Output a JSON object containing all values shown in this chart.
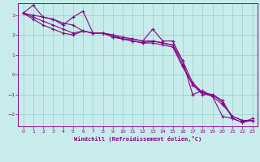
{
  "xlabel": "Windchill (Refroidissement éolien,°C)",
  "bg_color": "#c8ecec",
  "grid_color": "#a0d0d0",
  "line_color": "#880088",
  "xlim": [
    -0.5,
    23.5
  ],
  "ylim": [
    -2.6,
    3.6
  ],
  "yticks": [
    -2,
    -1,
    0,
    1,
    2,
    3
  ],
  "xticks": [
    0,
    1,
    2,
    3,
    4,
    5,
    6,
    7,
    8,
    9,
    10,
    11,
    12,
    13,
    14,
    15,
    16,
    17,
    18,
    19,
    20,
    21,
    22,
    23
  ],
  "series": [
    [
      3.1,
      3.5,
      2.9,
      2.8,
      2.5,
      2.9,
      3.2,
      2.1,
      2.1,
      2.0,
      1.8,
      1.8,
      1.7,
      2.3,
      1.7,
      1.7,
      0.7,
      -1.0,
      -0.8,
      -1.1,
      -2.1,
      -2.2,
      -2.4,
      -2.2
    ],
    [
      3.1,
      2.8,
      2.5,
      2.3,
      2.1,
      2.0,
      2.2,
      2.1,
      2.1,
      1.9,
      1.8,
      1.7,
      1.6,
      1.7,
      1.6,
      1.5,
      0.5,
      -0.5,
      -1.0,
      -1.0,
      -1.3,
      -2.2,
      -2.4,
      -2.3
    ],
    [
      3.1,
      2.9,
      2.7,
      2.5,
      2.3,
      2.1,
      2.2,
      2.1,
      2.1,
      1.9,
      1.8,
      1.7,
      1.6,
      1.6,
      1.5,
      1.4,
      0.4,
      -0.5,
      -0.9,
      -1.0,
      -1.4,
      -2.1,
      -2.3,
      -2.3
    ],
    [
      3.1,
      3.0,
      2.9,
      2.8,
      2.6,
      2.5,
      2.2,
      2.1,
      2.1,
      2.0,
      1.9,
      1.8,
      1.7,
      1.7,
      1.6,
      1.5,
      0.7,
      -0.4,
      -0.9,
      -1.1,
      -1.5,
      -2.1,
      -2.3,
      -2.3
    ]
  ]
}
